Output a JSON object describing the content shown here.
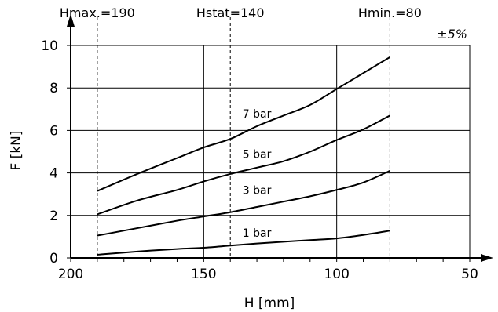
{
  "chart_data": {
    "type": "line",
    "title": "",
    "xlabel": "H [mm]",
    "ylabel": "F [kN]",
    "xlim": [
      200,
      50
    ],
    "ylim": [
      0,
      10
    ],
    "x_ticks": [
      200,
      150,
      100,
      50
    ],
    "x_tick_labels": [
      "200",
      "150",
      "100",
      "50"
    ],
    "y_ticks": [
      0,
      2,
      4,
      6,
      8,
      10
    ],
    "y_tick_labels": [
      "0",
      "2",
      "4",
      "6",
      "8",
      "10"
    ],
    "grid": true,
    "tolerance_label": "±5%",
    "reference_lines": [
      {
        "x": 190,
        "label": "Hmax.=190"
      },
      {
        "x": 140,
        "label": "Hstat=140"
      },
      {
        "x": 80,
        "label": "Hmin.=80"
      }
    ],
    "series": [
      {
        "name": "7 bar",
        "x": [
          190,
          175,
          160,
          150,
          140,
          130,
          120,
          110,
          100,
          90,
          80
        ],
        "y": [
          3.15,
          3.95,
          4.7,
          5.2,
          5.6,
          6.2,
          6.7,
          7.2,
          7.95,
          8.7,
          9.45
        ],
        "label_pos": [
          130,
          6.6
        ]
      },
      {
        "name": "5 bar",
        "x": [
          190,
          175,
          160,
          150,
          140,
          130,
          120,
          110,
          100,
          90,
          80
        ],
        "y": [
          2.05,
          2.7,
          3.2,
          3.6,
          3.95,
          4.25,
          4.55,
          5.0,
          5.55,
          6.05,
          6.7
        ],
        "label_pos": [
          130,
          4.7
        ]
      },
      {
        "name": "3 bar",
        "x": [
          190,
          175,
          160,
          150,
          140,
          130,
          120,
          110,
          100,
          90,
          80
        ],
        "y": [
          1.05,
          1.4,
          1.75,
          1.95,
          2.15,
          2.4,
          2.65,
          2.9,
          3.2,
          3.55,
          4.1
        ],
        "label_pos": [
          130,
          3.0
        ]
      },
      {
        "name": "1 bar",
        "x": [
          190,
          175,
          160,
          150,
          140,
          130,
          120,
          110,
          100,
          90,
          80
        ],
        "y": [
          0.15,
          0.3,
          0.42,
          0.48,
          0.58,
          0.68,
          0.76,
          0.84,
          0.92,
          1.08,
          1.28
        ],
        "label_pos": [
          130,
          1.0
        ]
      }
    ]
  }
}
